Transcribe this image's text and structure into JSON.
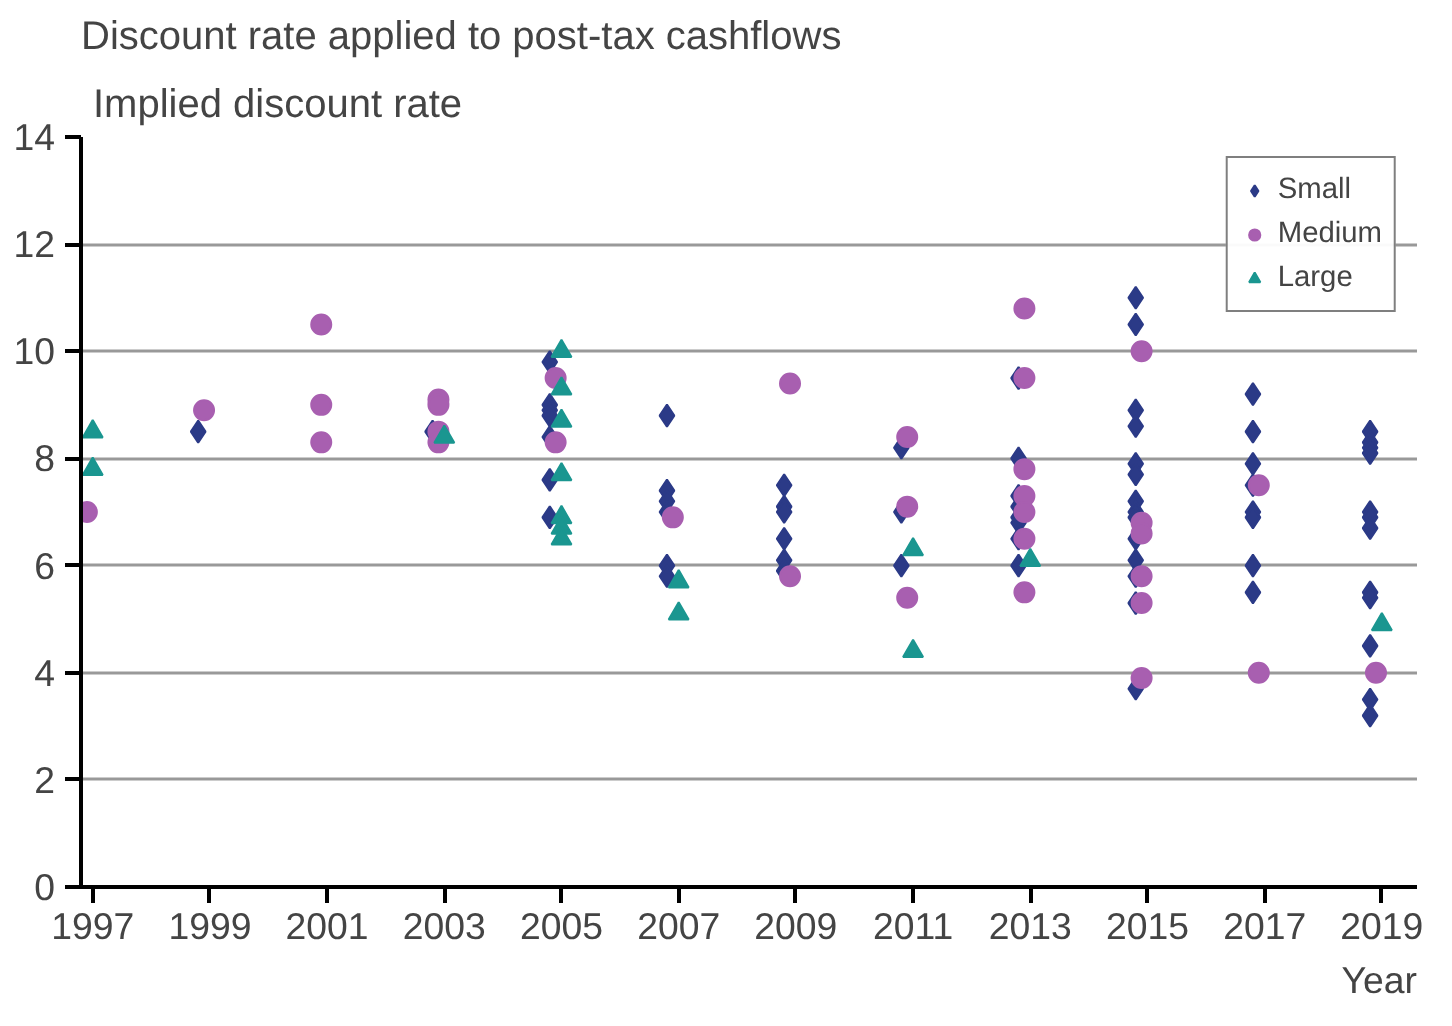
{
  "chart_data": {
    "type": "scatter",
    "title": "Discount rate applied to post-tax cashflows",
    "ylabel": "Implied discount rate",
    "xlabel": "Year",
    "xlim": [
      1996.8,
      2019.6
    ],
    "xticks": [
      1997,
      1999,
      2001,
      2003,
      2005,
      2007,
      2009,
      2011,
      2013,
      2015,
      2017,
      2019
    ],
    "ylim": [
      0,
      14
    ],
    "yticks": [
      0,
      2,
      4,
      6,
      8,
      10,
      12,
      14
    ],
    "grid": "y",
    "legend": "top right",
    "series": [
      {
        "name": "Small",
        "color": "#2b3a87",
        "marker": "diamond",
        "x": [
          1998.8,
          2002.8,
          2004.8,
          2004.8,
          2004.8,
          2004.8,
          2004.8,
          2004.8,
          2004.8,
          2006.8,
          2006.8,
          2006.8,
          2006.8,
          2006.8,
          2006.8,
          2008.8,
          2008.8,
          2008.8,
          2008.8,
          2008.8,
          2008.8,
          2010.8,
          2010.8,
          2010.8,
          2012.8,
          2012.8,
          2012.8,
          2012.8,
          2012.8,
          2012.8,
          2012.8,
          2012.8,
          2014.8,
          2014.8,
          2014.8,
          2014.8,
          2014.8,
          2014.8,
          2014.8,
          2014.8,
          2014.8,
          2014.8,
          2014.8,
          2014.8,
          2014.8,
          2014.8,
          2016.8,
          2016.8,
          2016.8,
          2016.8,
          2016.8,
          2016.8,
          2016.8,
          2016.8,
          2018.8,
          2018.8,
          2018.8,
          2018.8,
          2018.8,
          2018.8,
          2018.8,
          2018.8,
          2018.8,
          2018.8,
          2018.8,
          2018.8
        ],
        "values": [
          8.5,
          8.5,
          9.8,
          9.0,
          8.9,
          8.8,
          8.4,
          7.6,
          6.9,
          8.8,
          7.4,
          7.2,
          7.0,
          6.0,
          5.8,
          7.5,
          7.1,
          7.0,
          6.5,
          6.1,
          5.9,
          8.2,
          7.0,
          6.0,
          9.5,
          8.0,
          7.3,
          7.1,
          6.9,
          6.8,
          6.5,
          6.0,
          11.0,
          10.5,
          8.9,
          8.6,
          7.9,
          7.7,
          7.2,
          7.0,
          6.9,
          6.5,
          6.1,
          5.8,
          5.3,
          3.7,
          9.2,
          8.5,
          7.9,
          7.5,
          7.0,
          6.9,
          6.0,
          5.5,
          8.5,
          8.3,
          8.2,
          8.1,
          7.0,
          6.9,
          6.7,
          5.5,
          5.4,
          4.5,
          3.5,
          3.2
        ]
      },
      {
        "name": "Medium",
        "color": "#a85fb0",
        "marker": "circle",
        "x": [
          1996.9,
          1998.9,
          2000.9,
          2000.9,
          2000.9,
          2002.9,
          2002.9,
          2002.9,
          2002.9,
          2004.9,
          2004.9,
          2006.9,
          2008.9,
          2008.9,
          2010.9,
          2010.9,
          2010.9,
          2012.9,
          2012.9,
          2012.9,
          2012.9,
          2012.9,
          2012.9,
          2012.9,
          2014.9,
          2014.9,
          2014.9,
          2014.9,
          2014.9,
          2014.9,
          2016.9,
          2016.9,
          2018.9
        ],
        "values": [
          7.0,
          8.9,
          10.5,
          9.0,
          8.3,
          9.1,
          9.0,
          8.5,
          8.3,
          9.5,
          8.3,
          6.9,
          9.4,
          5.8,
          8.4,
          7.1,
          5.4,
          10.8,
          9.5,
          7.8,
          7.3,
          7.0,
          6.5,
          5.5,
          10.0,
          6.8,
          6.6,
          5.8,
          5.3,
          3.9,
          7.5,
          4.0,
          4.0
        ]
      },
      {
        "name": "Large",
        "color": "#1a9690",
        "marker": "triangle",
        "x": [
          1997.0,
          1997.0,
          2003.0,
          2005.0,
          2005.0,
          2005.0,
          2005.0,
          2005.0,
          2005.0,
          2005.0,
          2007.0,
          2007.0,
          2011.0,
          2011.0,
          2013.0,
          2019.0
        ],
        "values": [
          8.5,
          7.8,
          8.4,
          10.0,
          9.3,
          8.7,
          7.7,
          6.9,
          6.7,
          6.5,
          5.7,
          5.1,
          6.3,
          4.4,
          6.1,
          4.9
        ]
      }
    ]
  }
}
